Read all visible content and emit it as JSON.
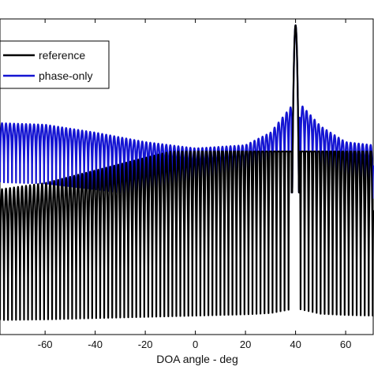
{
  "chart_data": {
    "type": "line",
    "xlabel": "DOA angle - deg",
    "xlim": [
      -78,
      71
    ],
    "ylim": [
      0,
      1
    ],
    "x_ticks": [
      -60,
      -40,
      -20,
      0,
      20,
      40,
      60
    ],
    "legend": {
      "placement": "top-left",
      "entries": [
        "reference",
        "phase-only"
      ]
    },
    "series": [
      {
        "name": "reference",
        "color": "#000000",
        "peak_x": 40,
        "peak_y": 0.98,
        "envelope_x": [
          -78,
          -60,
          -40,
          -20,
          0,
          20,
          30,
          38,
          42,
          50,
          60,
          71
        ],
        "envelope_y": [
          0.46,
          0.48,
          0.52,
          0.56,
          0.6,
          0.64,
          0.68,
          0.8,
          0.8,
          0.66,
          0.62,
          0.6
        ]
      },
      {
        "name": "phase-only",
        "color": "#1414d2",
        "peak_x": 40,
        "peak_y": 0.98,
        "envelope_x": [
          -78,
          -60,
          -40,
          -20,
          0,
          20,
          30,
          38,
          42,
          50,
          60,
          71
        ],
        "envelope_y": [
          0.67,
          0.665,
          0.64,
          0.61,
          0.59,
          0.6,
          0.64,
          0.72,
          0.73,
          0.66,
          0.61,
          0.6
        ]
      }
    ]
  }
}
